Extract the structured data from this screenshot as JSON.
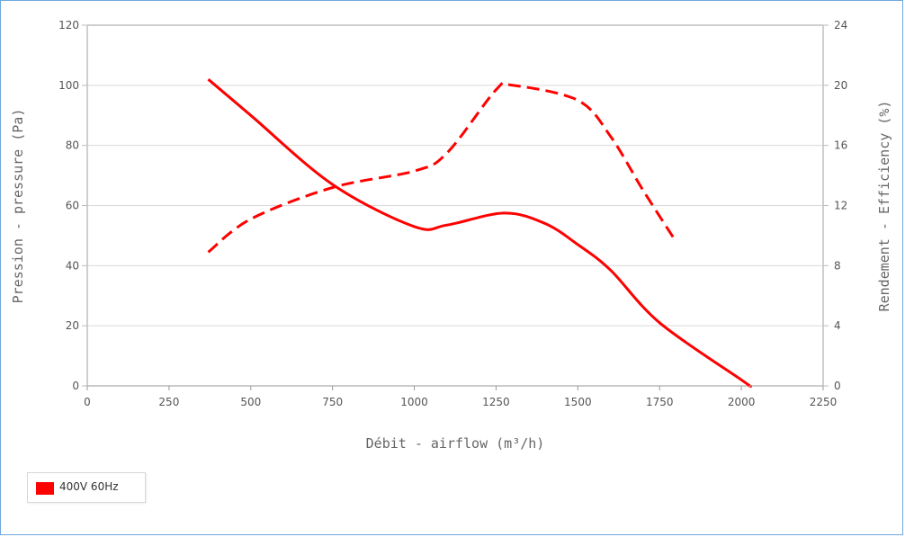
{
  "chart_data": {
    "type": "line",
    "xlabel": "Débit - airflow (m³/h)",
    "ylabel": "Pression - pressure (Pa)",
    "y2label": "Rendement - Efficiency (%)",
    "xlim": [
      0,
      2250
    ],
    "ylim": [
      0,
      120
    ],
    "y2lim": [
      0,
      24
    ],
    "xticks": [
      0,
      250,
      500,
      750,
      1000,
      1250,
      1500,
      1750,
      2000,
      2250
    ],
    "yticks": [
      0,
      20,
      40,
      60,
      80,
      100,
      120
    ],
    "y2ticks": [
      0,
      4,
      8,
      12,
      16,
      20,
      24
    ],
    "grid": true,
    "legend_position": "bottom-left",
    "legend": [
      {
        "label": "400V 60Hz",
        "color": "#ff0000"
      }
    ],
    "series": [
      {
        "legend_index": 0,
        "axis": "left",
        "style": "solid",
        "color": "#ff0000",
        "points": [
          [
            370,
            102
          ],
          [
            500,
            90
          ],
          [
            750,
            67
          ],
          [
            1000,
            53
          ],
          [
            1100,
            53.5
          ],
          [
            1275,
            57.5
          ],
          [
            1400,
            54
          ],
          [
            1500,
            47
          ],
          [
            1600,
            38.5
          ],
          [
            1750,
            21
          ],
          [
            2000,
            2
          ],
          [
            2025,
            0
          ]
        ]
      },
      {
        "legend_index": 0,
        "axis": "right",
        "style": "dashed",
        "color": "#ff0000",
        "points": [
          [
            370,
            8.9
          ],
          [
            500,
            11.1
          ],
          [
            750,
            13.2
          ],
          [
            1000,
            14.3
          ],
          [
            1100,
            15.5
          ],
          [
            1250,
            19.7
          ],
          [
            1300,
            20
          ],
          [
            1500,
            19
          ],
          [
            1600,
            16.6
          ],
          [
            1700,
            13
          ],
          [
            1800,
            9.6
          ]
        ]
      }
    ]
  }
}
